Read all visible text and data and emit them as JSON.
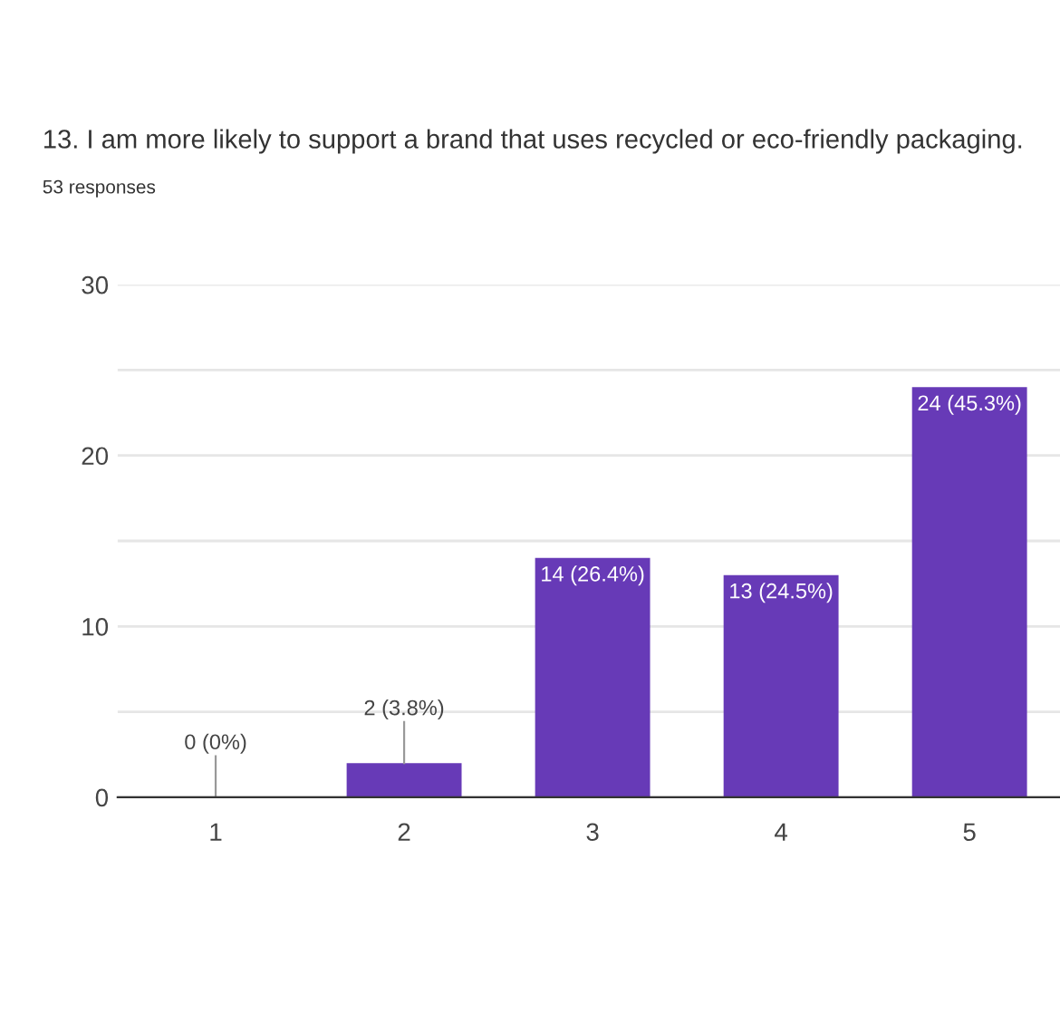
{
  "chart_data": {
    "type": "bar",
    "title": "13. I am more likely to support a brand that uses recycled or eco-friendly packaging.",
    "subtitle": "53 responses",
    "categories": [
      "1",
      "2",
      "3",
      "4",
      "5"
    ],
    "values": [
      0,
      2,
      14,
      13,
      24
    ],
    "value_labels": [
      "0 (0%)",
      "2 (3.8%)",
      "14 (26.4%)",
      "13 (24.5%)",
      "24 (45.3%)"
    ],
    "color": "#673ab7",
    "ylim": [
      0,
      30
    ],
    "yticks": [
      0,
      {
        "value": 5,
        "label": null
      },
      10,
      {
        "value": 15,
        "label": null
      },
      20,
      {
        "value": 25,
        "label": null
      },
      30
    ],
    "grid": "y"
  }
}
